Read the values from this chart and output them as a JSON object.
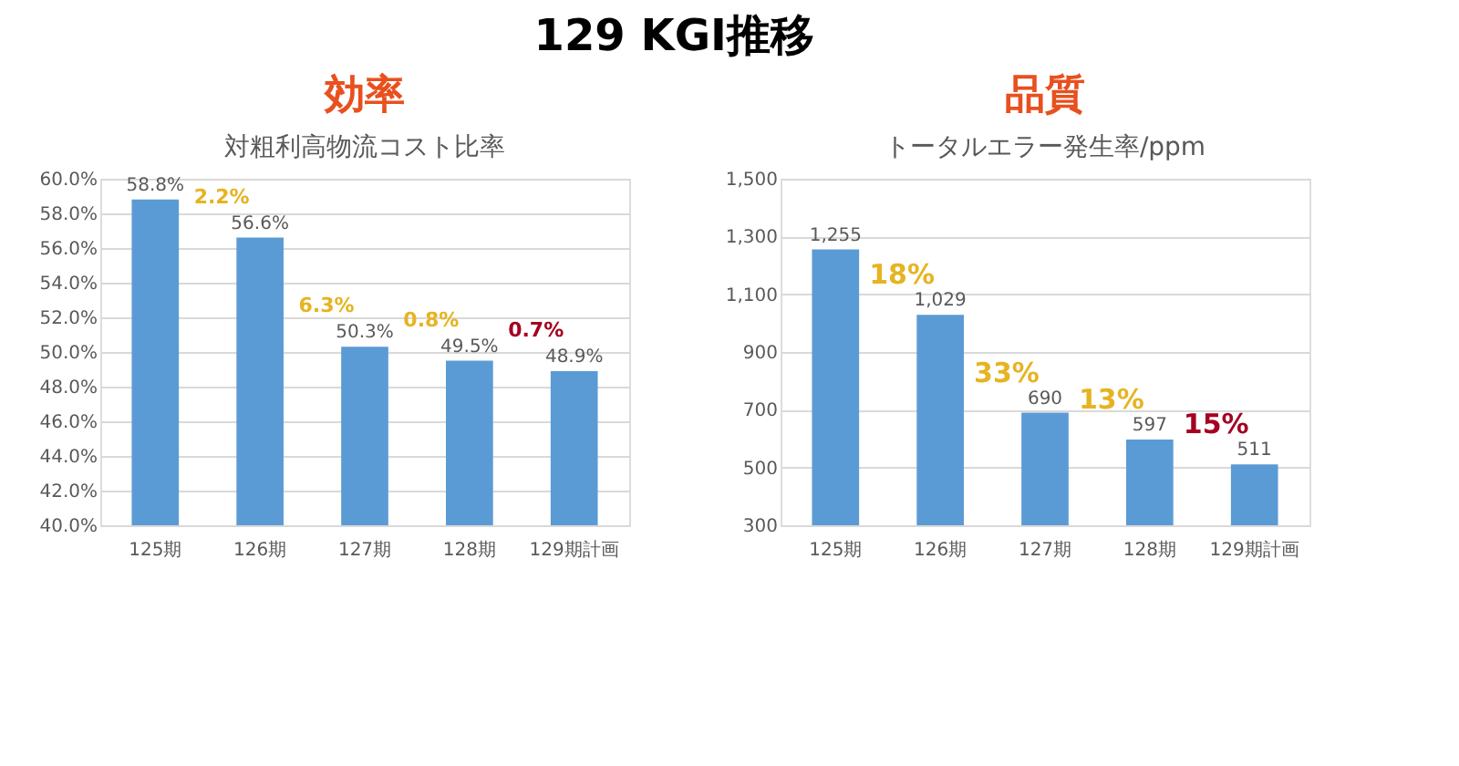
{
  "chart_data": [
    {
      "type": "bar",
      "title": "効率",
      "subtitle": "対粗利高物流コスト比率",
      "categories": [
        "125期",
        "126期",
        "127期",
        "128期",
        "129期計画"
      ],
      "values": [
        58.8,
        56.6,
        50.3,
        49.5,
        48.9
      ],
      "color": "#5b9bd5",
      "value_labels": [
        "58.8%",
        "56.6%",
        "50.3%",
        "49.5%",
        "48.9%"
      ],
      "ylim": [
        40,
        60
      ],
      "yticks": [
        {
          "value": 40,
          "label": "40.0%"
        },
        {
          "value": 42,
          "label": "42.0%"
        },
        {
          "value": 44,
          "label": "44.0%"
        },
        {
          "value": 46,
          "label": "46.0%"
        },
        {
          "value": 48,
          "label": "48.0%"
        },
        {
          "value": 50,
          "label": "50.0%"
        },
        {
          "value": 52,
          "label": "52.0%"
        },
        {
          "value": 54,
          "label": "54.0%"
        },
        {
          "value": 56,
          "label": "56.0%"
        },
        {
          "value": 58,
          "label": "58.0%"
        },
        {
          "value": 60,
          "label": "60.0%"
        }
      ],
      "grid": "y",
      "annotations": [
        "129  KGI推移",
        "2.2%",
        "6.3%",
        "0.8%",
        "0.7%"
      ]
    },
    {
      "type": "bar",
      "title": "品質",
      "subtitle": "トータルエラー発生率/ppm",
      "categories": [
        "125期",
        "126期",
        "127期",
        "128期",
        "129期計画"
      ],
      "values": [
        1255,
        1029,
        690,
        597,
        511
      ],
      "color": "#5b9bd5",
      "value_labels": [
        "1,255",
        "1,029",
        "690",
        "597",
        "511"
      ],
      "ylim": [
        300,
        1500
      ],
      "yticks": [
        {
          "value": 300,
          "label": "300"
        },
        {
          "value": 500,
          "label": "500"
        },
        {
          "value": 700,
          "label": "700"
        },
        {
          "value": 900,
          "label": "900"
        },
        {
          "value": 1100,
          "label": "1,100"
        },
        {
          "value": 1300,
          "label": "1,300"
        },
        {
          "value": 1500,
          "label": "1,500"
        }
      ],
      "grid": "y",
      "annotations": [
        "18%",
        "33%",
        "13%",
        "15%"
      ]
    }
  ]
}
